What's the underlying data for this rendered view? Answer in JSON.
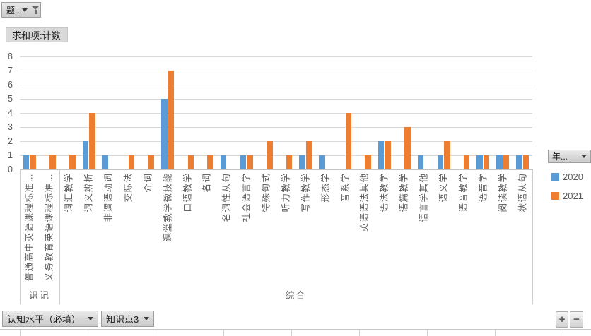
{
  "chart_field_buttons": {
    "report_filter": "题...",
    "value_field": "求和项:计数",
    "legend_field": "年...",
    "axis_field_1": "认知水平（必填）",
    "axis_field_2": "知识点3"
  },
  "expand_collapse": {
    "expand": "+",
    "collapse": "−"
  },
  "chart_data": {
    "type": "bar",
    "title": "求和项:计数",
    "categories": [
      "普通高中英语课程标准…",
      "义务教育英语课程标准…",
      "词汇教学",
      "词义辨析",
      "非谓语动词",
      "交际法",
      "介词",
      "课堂教学微技能",
      "口语教学",
      "名词",
      "名词性从句",
      "社会语言学",
      "特殊句式",
      "听力教学",
      "写作教学",
      "形态学",
      "音系学",
      "英语语法其他",
      "语法教学",
      "语篇教学",
      "语言学其他",
      "语义学",
      "语音教学",
      "语音学",
      "阅读教学",
      "状语从句"
    ],
    "category_groups": [
      {
        "label": "识记",
        "from": 0,
        "to": 2
      },
      {
        "label": "综合",
        "from": 2,
        "to": 26
      }
    ],
    "series": [
      {
        "name": "2020",
        "color": "#5B9BD5",
        "values": [
          1,
          0,
          0,
          2,
          1,
          0,
          0,
          5,
          0,
          0,
          1,
          1,
          0,
          0,
          1,
          1,
          0,
          0,
          2,
          0,
          1,
          1,
          0,
          1,
          1,
          1
        ]
      },
      {
        "name": "2021",
        "color": "#ED7D31",
        "values": [
          1,
          1,
          1,
          4,
          0,
          1,
          1,
          7,
          1,
          1,
          0,
          1,
          2,
          1,
          2,
          0,
          4,
          1,
          2,
          3,
          0,
          2,
          1,
          1,
          1,
          1
        ]
      }
    ],
    "ylim": [
      0,
      8
    ],
    "ytick_step": 1,
    "grid": true,
    "legend_position": "right"
  }
}
